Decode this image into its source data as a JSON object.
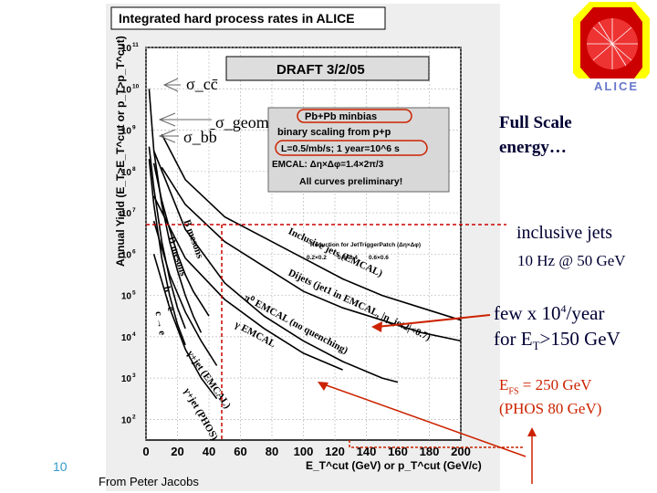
{
  "chart_data": {
    "type": "line",
    "title": "Integrated hard process rates in ALICE",
    "draft_label": "DRAFT 3/2/05",
    "xlabel": "E_T^cut (GeV) or p_T^cut (GeV/c)",
    "ylabel": "Annual Yield (E_T>E_T^cut or p_T>p_T^cut)",
    "xlim": [
      0,
      200
    ],
    "ylim_log10": [
      1.5,
      11
    ],
    "log_y": true,
    "grid": true,
    "x_ticks": [
      "0",
      "20",
      "40",
      "60",
      "80",
      "100",
      "120",
      "140",
      "160",
      "180",
      "200"
    ],
    "y_ticks": [
      "10^2",
      "10^3",
      "10^4",
      "10^5",
      "10^6",
      "10^7",
      "10^8",
      "10^9",
      "10^10",
      "10^11"
    ],
    "info_box": {
      "lines": [
        "Pb+Pb minbias",
        "binary scaling from p+p",
        "L=0.5/mb/s; 1 year=10^6 s",
        "EMCAL: Δη×Δφ=1.4×2π/3",
        "All curves preliminary!"
      ]
    },
    "cross_section_labels": [
      "σ_cc̄",
      "σ_geom",
      "σ_bb̄"
    ],
    "trigger_legend": {
      "title": "Reduction for JetTriggerPatch (Δη×Δφ)",
      "entries": [
        "0.2×0.2",
        "0.4×0.4",
        "0.6×0.6"
      ]
    },
    "series": [
      {
        "name": "D mesons",
        "color": "#000000",
        "x": [
          2,
          5,
          10,
          15,
          20,
          25,
          30,
          35
        ],
        "log_y": [
          10.0,
          8.5,
          7.2,
          6.3,
          5.6,
          5.0,
          4.5,
          4.1
        ]
      },
      {
        "name": "B mesons",
        "color": "#000000",
        "x": [
          5,
          10,
          15,
          20,
          25,
          30,
          35,
          40
        ],
        "log_y": [
          8.2,
          7.3,
          6.6,
          6.0,
          5.5,
          5.1,
          4.8,
          4.5
        ]
      },
      {
        "name": "b → e",
        "color": "#000000",
        "x": [
          2,
          5,
          10,
          15,
          20,
          25
        ],
        "log_y": [
          8.6,
          7.6,
          6.3,
          5.4,
          4.7,
          4.2
        ]
      },
      {
        "name": "c → e",
        "color": "#000000",
        "x": [
          2,
          5,
          10,
          15,
          20,
          25
        ],
        "log_y": [
          8.3,
          7.2,
          5.9,
          5.0,
          4.3,
          3.8
        ]
      },
      {
        "name": "Inclusive jets (EMCAL)",
        "color": "#000000",
        "x": [
          10,
          25,
          50,
          75,
          100,
          125,
          150,
          175,
          200
        ],
        "log_y": [
          8.9,
          7.8,
          6.9,
          6.4,
          5.9,
          5.4,
          5.0,
          4.7,
          4.4
        ]
      },
      {
        "name": "Dijets (jet1 in EMCAL, |η_jet2|<0.7)",
        "color": "#000000",
        "x": [
          10,
          25,
          50,
          75,
          100,
          125,
          150,
          175,
          200
        ],
        "log_y": [
          8.1,
          7.2,
          6.3,
          5.7,
          5.1,
          4.7,
          4.4,
          4.1,
          3.9
        ]
      },
      {
        "name": "π⁰ EMCAL (no quenching)",
        "color": "#000000",
        "x": [
          5,
          25,
          50,
          75,
          100,
          125,
          150,
          160
        ],
        "log_y": [
          8.5,
          6.6,
          5.3,
          4.5,
          3.9,
          3.4,
          3.0,
          2.9
        ]
      },
      {
        "name": "γ EMCAL",
        "color": "#000000",
        "x": [
          5,
          25,
          50,
          75,
          100,
          125
        ],
        "log_y": [
          7.4,
          5.9,
          4.9,
          4.2,
          3.6,
          3.2
        ]
      },
      {
        "name": "γ+jet (EMCAL)",
        "color": "#000000",
        "x": [
          5,
          15,
          25,
          35,
          45
        ],
        "log_y": [
          6.8,
          5.5,
          4.6,
          3.9,
          3.3
        ]
      },
      {
        "name": "γ+jet (PHOS)",
        "color": "#000000",
        "x": [
          5,
          15,
          25,
          35,
          45
        ],
        "log_y": [
          6.0,
          4.7,
          3.7,
          3.0,
          2.5
        ]
      }
    ]
  },
  "slide": {
    "logo_text": "ALICE",
    "full_scale": "Full Scale energy…",
    "inclusive_jets": "inclusive jets",
    "inclusive_rate": "10 Hz @ 50 GeV",
    "few_line1": "few x 10",
    "few_exp": "4",
    "few_line1_tail": "/year",
    "few_line2_pre": "for E",
    "few_line2_sub": "T",
    "few_line2_post": ">150 GeV",
    "efs_pre": "E",
    "efs_sub": "FS",
    "efs_post": " = 250 GeV",
    "phos": "(PHOS 80 GeV)",
    "page_number": "10",
    "credit": "From Peter Jacobs",
    "colors": {
      "annotation": "#000033",
      "arrow": "#cc2200",
      "dashed_line": "#cc0000",
      "page_number": "#3399cc"
    }
  }
}
